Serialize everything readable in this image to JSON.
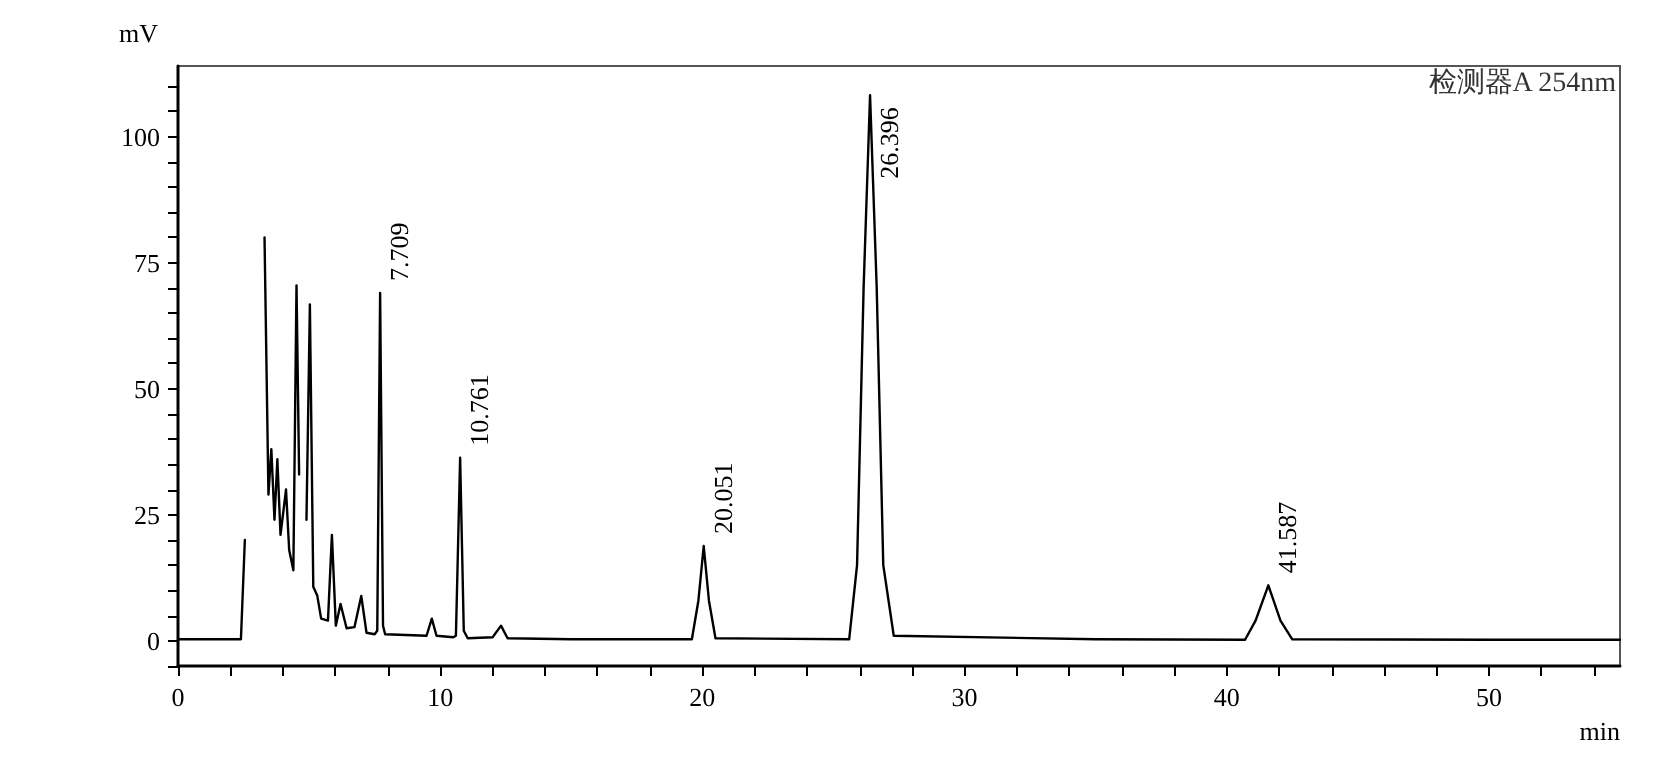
{
  "chart_data": {
    "type": "line",
    "xlabel": "min",
    "ylabel": "mV",
    "color": "#000000",
    "line_style": "solid",
    "xlim": [
      0,
      55
    ],
    "ylim": [
      -5,
      114
    ],
    "xticks": [
      0,
      {
        "value": 2,
        "label": null
      },
      {
        "value": 4,
        "label": null
      },
      {
        "value": 6,
        "label": null
      },
      {
        "value": 8,
        "label": null
      },
      10,
      {
        "value": 12,
        "label": null
      },
      {
        "value": 14,
        "label": null
      },
      {
        "value": 16,
        "label": null
      },
      {
        "value": 18,
        "label": null
      },
      20,
      {
        "value": 22,
        "label": null
      },
      {
        "value": 24,
        "label": null
      },
      {
        "value": 26,
        "label": null
      },
      {
        "value": 28,
        "label": null
      },
      30,
      {
        "value": 32,
        "label": null
      },
      {
        "value": 34,
        "label": null
      },
      {
        "value": 36,
        "label": null
      },
      {
        "value": 38,
        "label": null
      },
      40,
      {
        "value": 42,
        "label": null
      },
      {
        "value": 44,
        "label": null
      },
      {
        "value": 46,
        "label": null
      },
      {
        "value": 48,
        "label": null
      },
      50,
      {
        "value": 52,
        "label": null
      },
      {
        "value": 54,
        "label": null
      }
    ],
    "yticks": [
      {
        "value": -5,
        "label": null
      },
      0,
      {
        "value": 5,
        "label": null
      },
      {
        "value": 10,
        "label": null
      },
      {
        "value": 15,
        "label": null
      },
      {
        "value": 20,
        "label": null
      },
      25,
      {
        "value": 30,
        "label": null
      },
      {
        "value": 35,
        "label": null
      },
      {
        "value": 40,
        "label": null
      },
      {
        "value": 45,
        "label": null
      },
      50,
      {
        "value": 55,
        "label": null
      },
      {
        "value": 60,
        "label": null
      },
      {
        "value": 65,
        "label": null
      },
      {
        "value": 70,
        "label": null
      },
      75,
      {
        "value": 80,
        "label": null
      },
      {
        "value": 85,
        "label": null
      },
      {
        "value": 90,
        "label": null
      },
      {
        "value": 95,
        "label": null
      },
      100,
      {
        "value": 105,
        "label": null
      },
      {
        "value": 110,
        "label": null
      }
    ],
    "x": [
      0,
      2.4,
      2.55,
      2.7,
      2.9,
      3.1,
      3.3,
      3.45,
      3.56,
      3.68,
      3.79,
      3.91,
      4.12,
      4.24,
      4.4,
      4.52,
      4.62,
      4.7,
      4.8,
      4.9,
      5.03,
      5.16,
      5.31,
      5.46,
      5.72,
      5.87,
      6.02,
      6.2,
      6.43,
      6.73,
      6.99,
      7.19,
      7.5,
      7.6,
      7.709,
      7.82,
      7.9,
      9.48,
      9.68,
      9.86,
      10.5,
      10.6,
      10.761,
      10.9,
      11.05,
      12.0,
      12.32,
      12.57,
      15,
      19.6,
      19.85,
      20.051,
      20.25,
      20.5,
      25.6,
      25.9,
      26.15,
      26.396,
      26.65,
      26.9,
      27.3,
      35,
      40.7,
      41.1,
      41.587,
      42.05,
      42.5,
      50,
      55
    ],
    "values": [
      0.3,
      0.3,
      20,
      null,
      null,
      null,
      80,
      29,
      38,
      24,
      36,
      21,
      30,
      18,
      14,
      70.5,
      33,
      null,
      null,
      24,
      66.7,
      10.7,
      9,
      4.4,
      4,
      21,
      3,
      7.3,
      2.5,
      2.7,
      8.9,
      1.6,
      1.3,
      2,
      69,
      3,
      1.3,
      1,
      4.4,
      1,
      0.7,
      1,
      36.3,
      2,
      0.5,
      0.7,
      3,
      0.5,
      0.3,
      0.3,
      8,
      18.8,
      8,
      0.5,
      0.3,
      15,
      70,
      108.2,
      70,
      15,
      1,
      0.3,
      0.2,
      4,
      11,
      4,
      0.3,
      0.2,
      0.2
    ],
    "annotations": [
      "检测器A 254nm",
      {
        "text": "7.709",
        "x": 7.709,
        "y": 69
      },
      {
        "text": "10.761",
        "x": 10.761,
        "y": 36.3
      },
      {
        "text": "20.051",
        "x": 20.051,
        "y": 18.8
      },
      {
        "text": "26.396",
        "x": 26.396,
        "y": 108.2
      },
      {
        "text": "41.587",
        "x": 41.587,
        "y": 11
      }
    ]
  }
}
